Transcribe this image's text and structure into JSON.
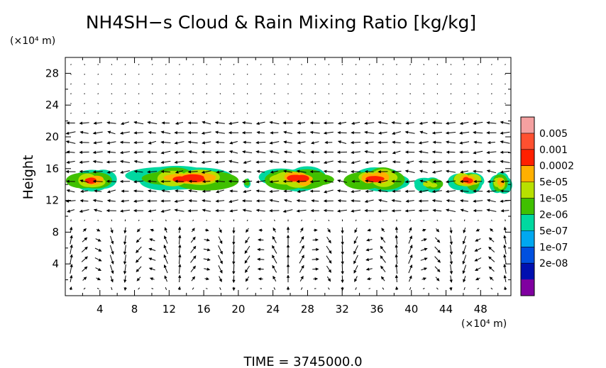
{
  "chart_data": {
    "type": "heatmap",
    "title": "NH4SH−s Cloud & Rain Mixing Ratio [kg/kg]",
    "ylabel": "Height",
    "yunit": "(×10⁴ m)",
    "xunit": "(×10⁴ m)",
    "xlim": [
      0,
      51.5
    ],
    "ylim": [
      0,
      30
    ],
    "xticks": [
      4,
      8,
      12,
      16,
      20,
      24,
      28,
      32,
      36,
      40,
      44,
      48
    ],
    "yticks": [
      4,
      8,
      12,
      16,
      20,
      24,
      28
    ],
    "colorbar": {
      "labels": [
        "0.005",
        "0.001",
        "0.0002",
        "5e-05",
        "1e-05",
        "2e-06",
        "5e-07",
        "1e-07",
        "2e-08"
      ],
      "colors": [
        "#f4a0a0",
        "#ff5030",
        "#ff2000",
        "#ffb000",
        "#b8e000",
        "#40c000",
        "#00d8a0",
        "#00a8f0",
        "#0050e0",
        "#0010b0",
        "#8000a0"
      ]
    },
    "cloud_patches": [
      {
        "x": [
          0,
          6
        ],
        "y": [
          13,
          16
        ],
        "peak": 5
      },
      {
        "x": [
          8,
          20
        ],
        "y": [
          13,
          16.5
        ],
        "peak": 5
      },
      {
        "x": [
          20.5,
          21.5
        ],
        "y": [
          13.5,
          15
        ],
        "peak": 2
      },
      {
        "x": [
          23,
          31
        ],
        "y": [
          13,
          16.5
        ],
        "peak": 5
      },
      {
        "x": [
          32,
          39.5
        ],
        "y": [
          13,
          16.5
        ],
        "peak": 5
      },
      {
        "x": [
          40.5,
          44
        ],
        "y": [
          13,
          15
        ],
        "peak": 3
      },
      {
        "x": [
          44.5,
          48.5
        ],
        "y": [
          13,
          16
        ],
        "peak": 5
      },
      {
        "x": [
          49,
          51.5
        ],
        "y": [
          12.5,
          16
        ],
        "peak": 4
      }
    ]
  },
  "footer": {
    "time_label": "TIME  =  3745000.0"
  }
}
